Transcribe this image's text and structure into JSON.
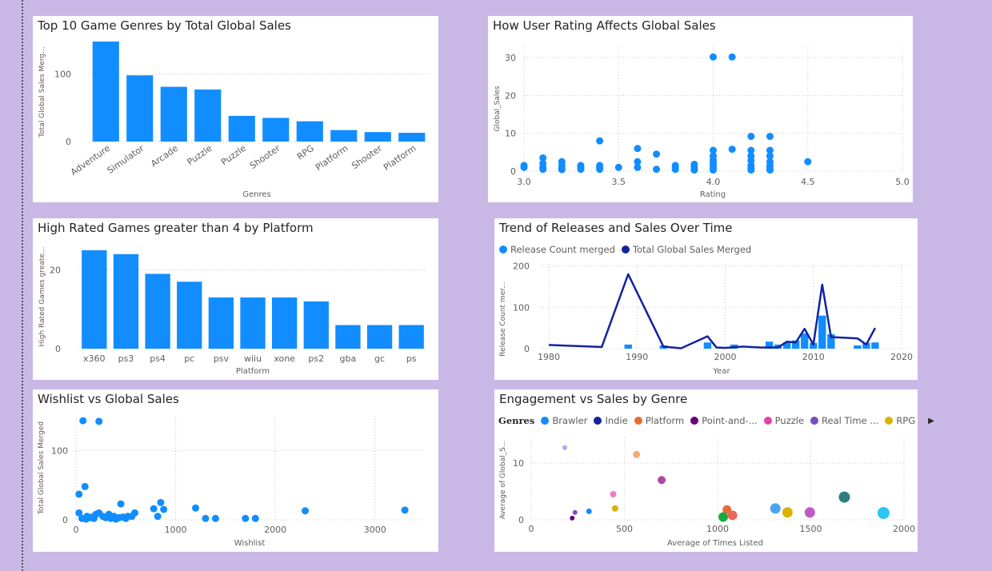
{
  "charts": {
    "c1": {
      "title": "Top 10 Game Genres by Total Global Sales"
    },
    "c2": {
      "title": "How User Rating Affects Global Sales"
    },
    "c3": {
      "title": "High Rated Games greater than 4 by Platform"
    },
    "c4": {
      "title": "Trend of Releases and Sales Over Time"
    },
    "c5": {
      "title": "Wishlist vs Global Sales"
    },
    "c6": {
      "title": "Engagement vs Sales by Genre"
    }
  },
  "legend4": {
    "items": [
      "Release Count merged",
      "Total Global Sales Merged"
    ]
  },
  "legend6": {
    "title": "Genres",
    "items": [
      "Brawler",
      "Indie",
      "Platform",
      "Point-and-...",
      "Puzzle",
      "Real Time ...",
      "RPG"
    ],
    "more_icon": "chevron-right-icon"
  },
  "colors": {
    "accent": "#118dff",
    "dark": "#12239e",
    "bg": "#c9b8e6"
  },
  "chart_data": [
    {
      "id": "c1",
      "type": "bar",
      "title": "Top 10 Game Genres by Total Global Sales",
      "xlabel": "Genres",
      "ylabel": "Total Global Sales Merg...",
      "categories": [
        "Adventure",
        "Simulator",
        "Arcade",
        "Puzzle",
        "Puzzle",
        "Shooter",
        "RPG",
        "Platform",
        "Shooter",
        "Platform"
      ],
      "values": [
        148,
        98,
        81,
        77,
        38,
        35,
        30,
        17,
        14,
        13
      ],
      "yticks": [
        0,
        100
      ],
      "ylim": [
        0,
        155
      ]
    },
    {
      "id": "c2",
      "type": "scatter",
      "title": "How User Rating Affects Global Sales",
      "xlabel": "Rating",
      "ylabel": "Global_Sales",
      "xlim": [
        3.0,
        5.0
      ],
      "ylim": [
        0,
        33
      ],
      "xticks": [
        3.0,
        3.5,
        4.0,
        4.5,
        5.0
      ],
      "yticks": [
        0,
        10,
        20,
        30
      ],
      "points": [
        [
          3.0,
          1.5
        ],
        [
          3.0,
          1.0
        ],
        [
          3.1,
          3.5
        ],
        [
          3.1,
          2.0
        ],
        [
          3.1,
          1.0
        ],
        [
          3.1,
          0.5
        ],
        [
          3.2,
          2.5
        ],
        [
          3.2,
          1.5
        ],
        [
          3.2,
          0.8
        ],
        [
          3.2,
          0.4
        ],
        [
          3.3,
          1.5
        ],
        [
          3.3,
          1.0
        ],
        [
          3.3,
          0.5
        ],
        [
          3.4,
          8.0
        ],
        [
          3.4,
          1.5
        ],
        [
          3.4,
          1.0
        ],
        [
          3.4,
          0.5
        ],
        [
          3.5,
          1.0
        ],
        [
          3.6,
          6.0
        ],
        [
          3.6,
          2.5
        ],
        [
          3.6,
          1.0
        ],
        [
          3.7,
          4.5
        ],
        [
          3.7,
          0.5
        ],
        [
          3.8,
          1.5
        ],
        [
          3.8,
          1.0
        ],
        [
          3.8,
          0.5
        ],
        [
          3.9,
          1.8
        ],
        [
          3.9,
          1.2
        ],
        [
          3.9,
          0.6
        ],
        [
          3.9,
          0.3
        ],
        [
          4.0,
          30.2
        ],
        [
          4.0,
          5.5
        ],
        [
          4.0,
          4.0
        ],
        [
          4.0,
          3.0
        ],
        [
          4.0,
          2.2
        ],
        [
          4.0,
          1.5
        ],
        [
          4.0,
          0.8
        ],
        [
          4.0,
          0.3
        ],
        [
          4.1,
          30.2
        ],
        [
          4.1,
          5.8
        ],
        [
          4.2,
          9.2
        ],
        [
          4.2,
          5.5
        ],
        [
          4.2,
          4.0
        ],
        [
          4.2,
          2.8
        ],
        [
          4.2,
          1.5
        ],
        [
          4.2,
          0.8
        ],
        [
          4.2,
          0.3
        ],
        [
          4.3,
          9.2
        ],
        [
          4.3,
          5.5
        ],
        [
          4.3,
          4.0
        ],
        [
          4.3,
          2.5
        ],
        [
          4.3,
          1.5
        ],
        [
          4.3,
          0.8
        ],
        [
          4.3,
          0.3
        ],
        [
          4.5,
          2.5
        ]
      ]
    },
    {
      "id": "c3",
      "type": "bar",
      "title": "High Rated Games greater than 4 by Platform",
      "xlabel": "Platform",
      "ylabel": "High Rated Games greate...",
      "categories": [
        "x360",
        "ps3",
        "ps4",
        "pc",
        "psv",
        "wiiu",
        "xone",
        "ps2",
        "gba",
        "gc",
        "ps"
      ],
      "values": [
        25,
        24,
        19,
        17,
        13,
        13,
        13,
        12,
        6,
        6,
        6
      ],
      "yticks": [
        0,
        20
      ],
      "ylim": [
        0,
        27
      ]
    },
    {
      "id": "c4",
      "type": "line",
      "title": "Trend of Releases and Sales Over Time",
      "xlabel": "Year",
      "ylabel": "Release Count mer...",
      "xlim": [
        1979,
        2021
      ],
      "ylim": [
        0,
        205
      ],
      "xticks": [
        1980,
        1990,
        2000,
        2010,
        2020
      ],
      "yticks": [
        0,
        100,
        200
      ],
      "series": [
        {
          "name": "Release Count merged",
          "type": "bar",
          "x": [
            1989,
            1993,
            1998,
            2001,
            2005,
            2006,
            2007,
            2008,
            2009,
            2010,
            2011,
            2012,
            2015,
            2016,
            2017
          ],
          "values": [
            10,
            8,
            15,
            10,
            17,
            10,
            15,
            20,
            37,
            14,
            80,
            35,
            8,
            14,
            15
          ]
        },
        {
          "name": "Total Global Sales Merged",
          "type": "line",
          "x": [
            1980,
            1986,
            1989,
            1993,
            1995,
            1998,
            1999,
            2000,
            2002,
            2004,
            2006,
            2007,
            2008,
            2009,
            2010,
            2011,
            2012,
            2015,
            2016,
            2017
          ],
          "values": [
            9,
            4,
            180,
            5,
            1,
            30,
            3,
            2,
            5,
            3,
            3,
            17,
            15,
            48,
            10,
            155,
            28,
            25,
            10,
            50
          ]
        }
      ]
    },
    {
      "id": "c5",
      "type": "scatter",
      "title": "Wishlist vs Global Sales",
      "xlabel": "Wishlist",
      "ylabel": "Total Global Sales Merged",
      "xlim": [
        0,
        3500
      ],
      "ylim": [
        0,
        150
      ],
      "xticks": [
        0,
        1000,
        2000,
        3000
      ],
      "yticks": [
        0,
        100
      ],
      "points": [
        [
          70,
          143
        ],
        [
          230,
          142
        ],
        [
          90,
          48
        ],
        [
          30,
          37
        ],
        [
          30,
          10
        ],
        [
          110,
          5
        ],
        [
          160,
          4
        ],
        [
          200,
          8
        ],
        [
          230,
          10
        ],
        [
          270,
          5
        ],
        [
          330,
          8
        ],
        [
          380,
          5
        ],
        [
          430,
          3
        ],
        [
          450,
          23
        ],
        [
          470,
          4
        ],
        [
          520,
          5
        ],
        [
          560,
          5
        ],
        [
          590,
          10
        ],
        [
          780,
          16
        ],
        [
          820,
          5
        ],
        [
          850,
          25
        ],
        [
          880,
          15
        ],
        [
          1200,
          17
        ],
        [
          1300,
          2
        ],
        [
          1400,
          2
        ],
        [
          1700,
          2
        ],
        [
          1800,
          2
        ],
        [
          2300,
          13
        ],
        [
          3300,
          14
        ],
        [
          60,
          2
        ],
        [
          100,
          1
        ],
        [
          140,
          3
        ],
        [
          180,
          2
        ],
        [
          300,
          3
        ],
        [
          350,
          2
        ],
        [
          400,
          1
        ],
        [
          500,
          2
        ]
      ]
    },
    {
      "id": "c6",
      "type": "scatter",
      "title": "Engagement vs Sales by Genre",
      "xlabel": "Average of Times Listed",
      "ylabel": "Average of Global_S...",
      "xlim": [
        0,
        2000
      ],
      "ylim": [
        0,
        14.5
      ],
      "xticks": [
        0,
        500,
        1000,
        1500,
        2000
      ],
      "yticks": [
        0,
        10
      ],
      "bubbles": [
        {
          "x": 180,
          "y": 12.7,
          "r": 3,
          "color": "#b9a4f4"
        },
        {
          "x": 565,
          "y": 11.5,
          "r": 4.5,
          "color": "#f5a97a"
        },
        {
          "x": 700,
          "y": 7.0,
          "r": 5,
          "color": "#b0479f"
        },
        {
          "x": 440,
          "y": 4.5,
          "r": 4,
          "color": "#f27bc4"
        },
        {
          "x": 450,
          "y": 2.0,
          "r": 4,
          "color": "#d9b300"
        },
        {
          "x": 310,
          "y": 1.5,
          "r": 3.5,
          "color": "#118dff"
        },
        {
          "x": 235,
          "y": 1.3,
          "r": 3,
          "color": "#744ec2"
        },
        {
          "x": 220,
          "y": 0.3,
          "r": 3,
          "color": "#6b007b"
        },
        {
          "x": 1050,
          "y": 1.8,
          "r": 5.5,
          "color": "#e66c37"
        },
        {
          "x": 1080,
          "y": 0.8,
          "r": 6,
          "color": "#e8685a"
        },
        {
          "x": 1030,
          "y": 0.5,
          "r": 6,
          "color": "#1aab40"
        },
        {
          "x": 1310,
          "y": 2.0,
          "r": 6.5,
          "color": "#4aa3f0"
        },
        {
          "x": 1375,
          "y": 1.3,
          "r": 6.5,
          "color": "#d9b300"
        },
        {
          "x": 1495,
          "y": 1.3,
          "r": 6.5,
          "color": "#c05bc3"
        },
        {
          "x": 1680,
          "y": 4.0,
          "r": 7,
          "color": "#2f7f7f"
        },
        {
          "x": 1890,
          "y": 1.2,
          "r": 7.5,
          "color": "#2cc6f0"
        }
      ]
    }
  ]
}
